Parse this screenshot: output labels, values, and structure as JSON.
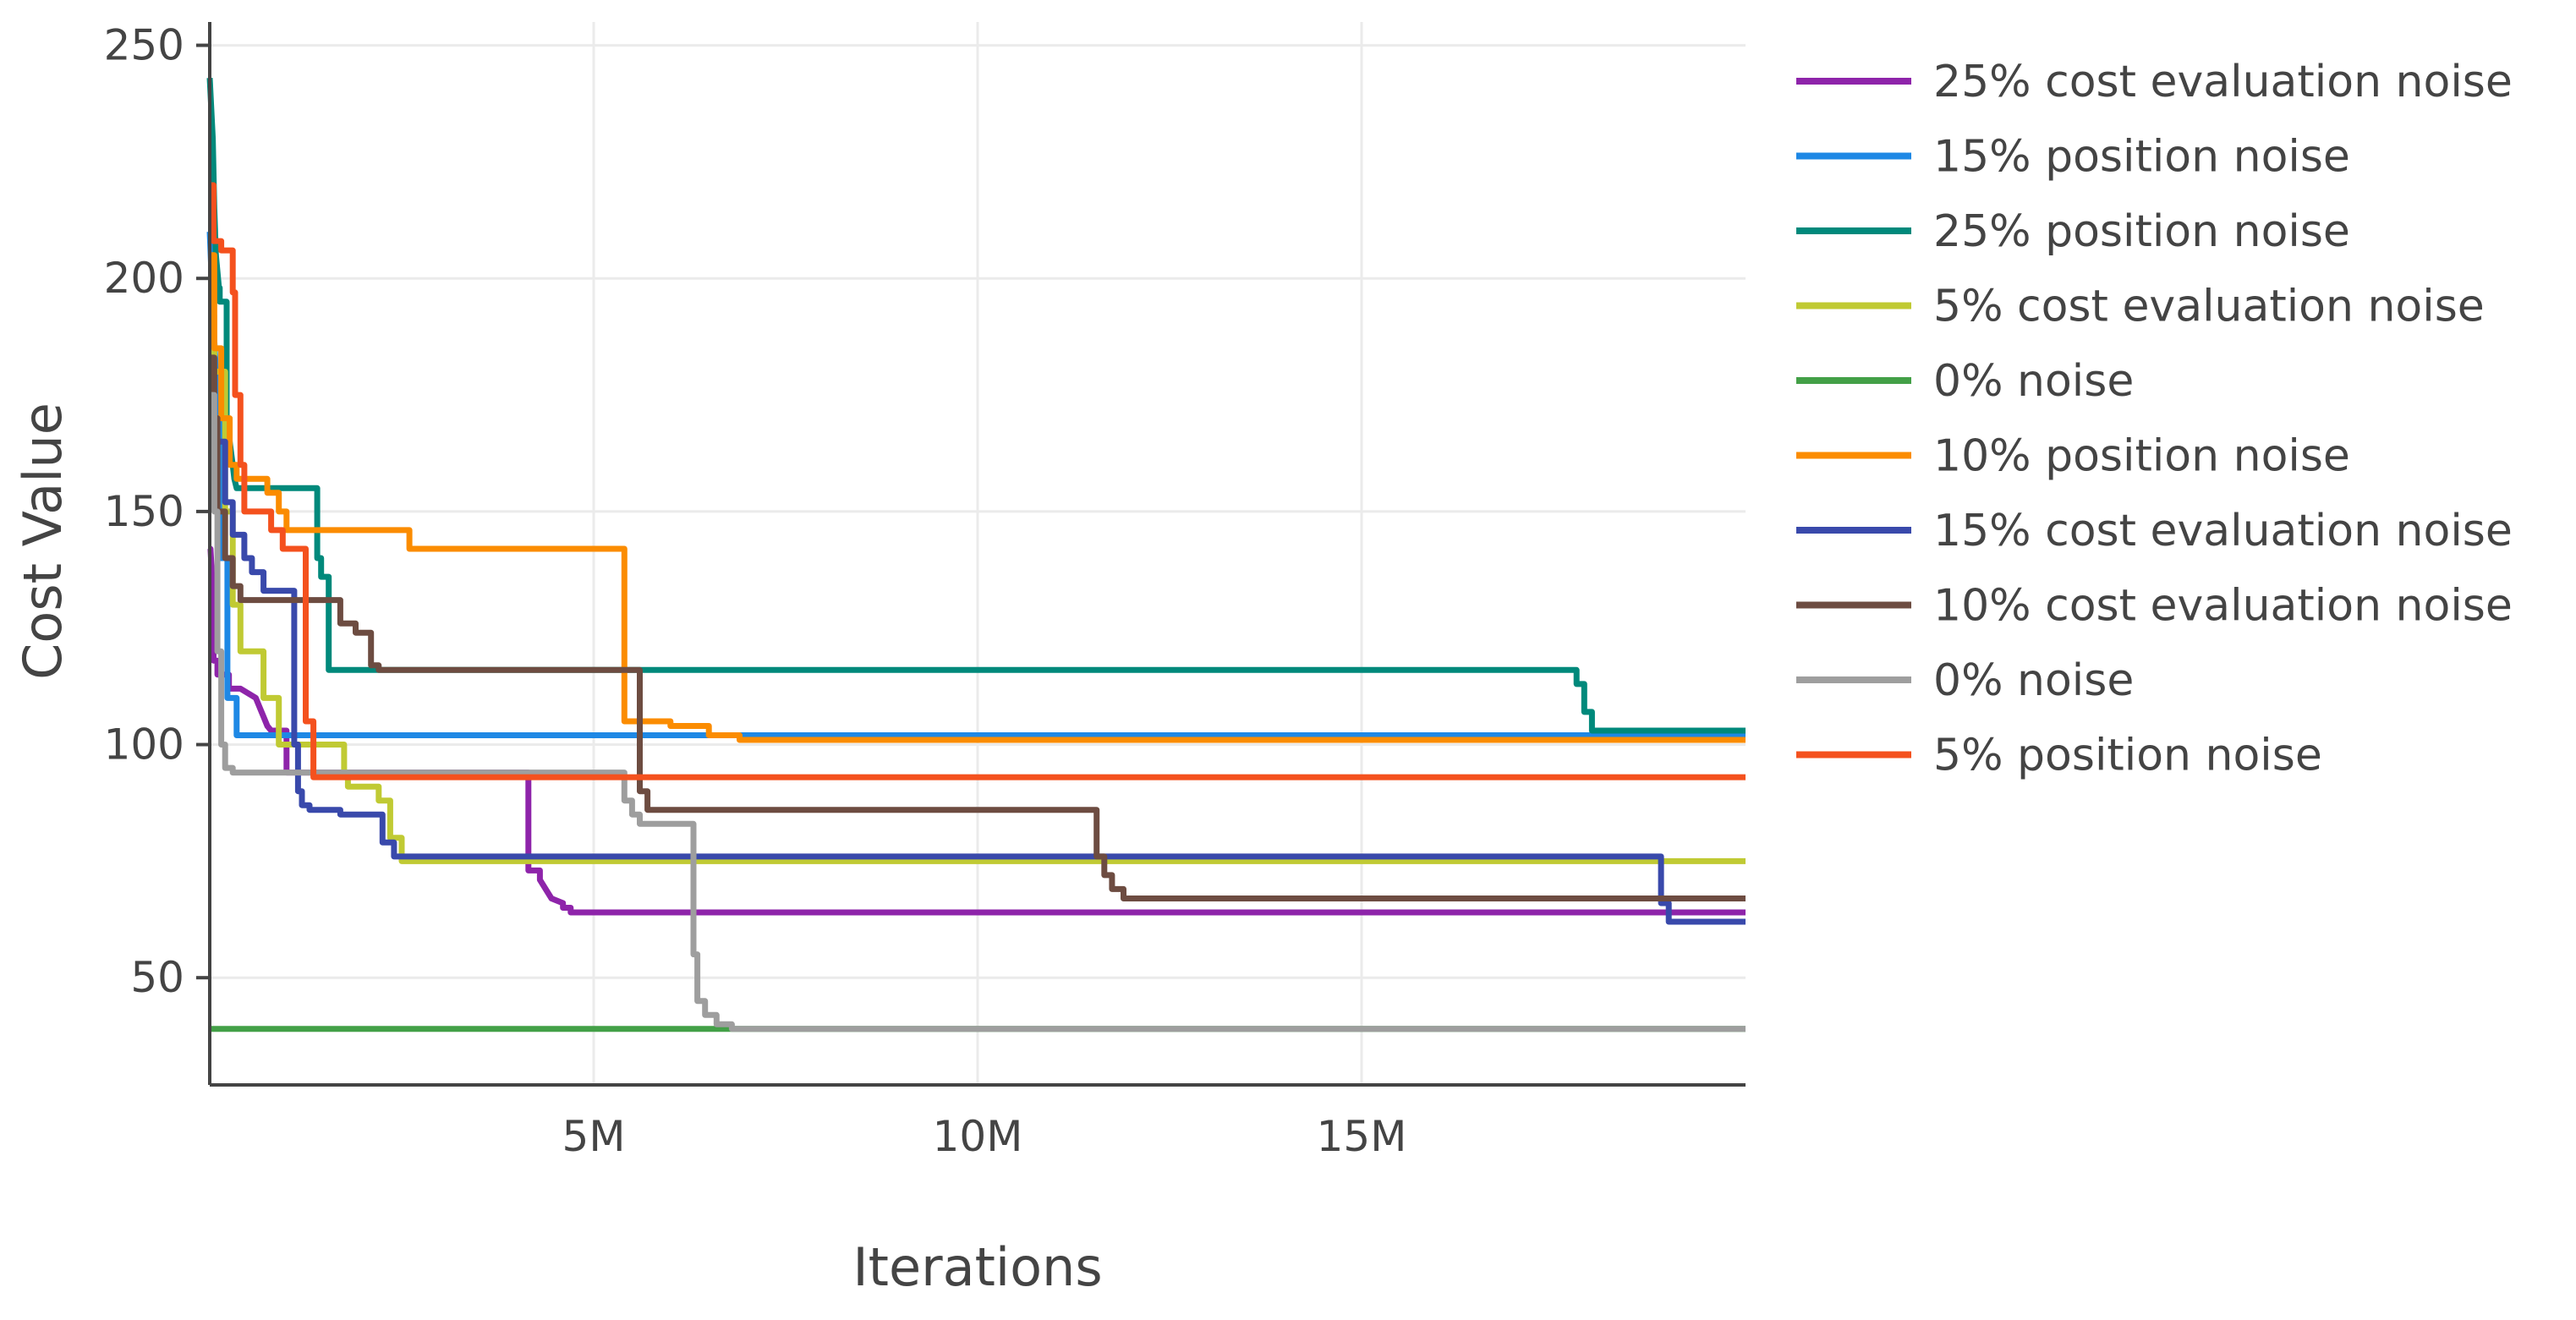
{
  "chart_data": {
    "type": "line",
    "title": "",
    "xlabel": "Iterations",
    "ylabel": "Cost Value",
    "xlim": [
      0,
      20000000
    ],
    "ylim": [
      27,
      255
    ],
    "x_ticks": [
      5000000,
      10000000,
      15000000
    ],
    "x_tick_labels": [
      "5M",
      "10M",
      "15M"
    ],
    "y_ticks": [
      50,
      100,
      150,
      200,
      250
    ],
    "y_tick_labels": [
      "50",
      "100",
      "150",
      "200",
      "250"
    ],
    "grid": true,
    "legend_position": "right",
    "series": [
      {
        "name": "0% noise",
        "color": "#43a047",
        "x": [
          0,
          20000000
        ],
        "y": [
          39,
          39
        ]
      },
      {
        "name": "25% cost evaluation noise",
        "color": "#8e24aa",
        "x": [
          0,
          10000,
          50000,
          50000,
          100000,
          100000,
          250000,
          250000,
          400000,
          600000,
          650000,
          700000,
          750000,
          800000,
          1000000,
          1000000,
          4150000,
          4150000,
          4300000,
          4300000,
          4450000,
          4600000,
          4600000,
          4700000,
          4700000,
          20000000
        ],
        "y": [
          142,
          142,
          130,
          118,
          118,
          115,
          115,
          112,
          112,
          110,
          108,
          106,
          104,
          103,
          103,
          94,
          94,
          73,
          73,
          71,
          67,
          66,
          65,
          65,
          64,
          64
        ]
      },
      {
        "name": "15% position noise",
        "color": "#1e88e5",
        "x": [
          0,
          50000,
          80000,
          80000,
          140000,
          140000,
          230000,
          230000,
          350000,
          350000,
          20000000
        ],
        "y": [
          210,
          190,
          180,
          170,
          170,
          140,
          140,
          110,
          110,
          102,
          102
        ]
      },
      {
        "name": "25% position noise",
        "color": "#00897b",
        "x": [
          0,
          40000,
          60000,
          80000,
          120000,
          130000,
          130000,
          220000,
          220000,
          300000,
          320000,
          350000,
          450000,
          1400000,
          1400000,
          1450000,
          1450000,
          1550000,
          1550000,
          17800000,
          17800000,
          17900000,
          17900000,
          18000000,
          18000000,
          20000000
        ],
        "y": [
          243,
          230,
          215,
          205,
          198,
          198,
          195,
          195,
          170,
          160,
          157,
          155,
          155,
          155,
          140,
          140,
          136,
          136,
          116,
          116,
          113,
          113,
          107,
          107,
          103,
          103
        ]
      },
      {
        "name": "5% cost evaluation noise",
        "color": "#c0ca33",
        "x": [
          0,
          60000,
          60000,
          200000,
          200000,
          300000,
          300000,
          400000,
          400000,
          700000,
          700000,
          900000,
          900000,
          1000000,
          1000000,
          1750000,
          1750000,
          1800000,
          1800000,
          2200000,
          2200000,
          2350000,
          2350000,
          2500000,
          2500000,
          20000000
        ],
        "y": [
          192,
          192,
          180,
          180,
          150,
          150,
          130,
          130,
          120,
          120,
          110,
          110,
          100,
          100,
          100,
          100,
          94,
          94,
          91,
          91,
          88,
          88,
          80,
          80,
          75,
          75
        ]
      },
      {
        "name": "10% position noise",
        "color": "#fb8c00",
        "x": [
          0,
          60000,
          60000,
          150000,
          150000,
          260000,
          260000,
          350000,
          350000,
          750000,
          750000,
          900000,
          900000,
          1000000,
          1000000,
          2600000,
          2600000,
          5400000,
          5400000,
          6000000,
          6000000,
          6500000,
          6500000,
          6900000,
          6900000,
          20000000
        ],
        "y": [
          205,
          205,
          185,
          185,
          170,
          170,
          160,
          160,
          157,
          157,
          154,
          154,
          150,
          150,
          146,
          146,
          142,
          142,
          105,
          105,
          104,
          104,
          102,
          102,
          101,
          101
        ]
      },
      {
        "name": "15% cost evaluation noise",
        "color": "#3949ab",
        "x": [
          0,
          50000,
          50000,
          200000,
          200000,
          300000,
          300000,
          450000,
          450000,
          550000,
          550000,
          700000,
          700000,
          1100000,
          1100000,
          1150000,
          1150000,
          1200000,
          1200000,
          1300000,
          1300000,
          1700000,
          1700000,
          2250000,
          2250000,
          2400000,
          2400000,
          18900000,
          18900000,
          19000000,
          19000000,
          20000000
        ],
        "y": [
          175,
          175,
          165,
          165,
          152,
          152,
          145,
          145,
          140,
          140,
          137,
          137,
          133,
          133,
          100,
          100,
          90,
          90,
          87,
          87,
          86,
          86,
          85,
          85,
          79,
          79,
          76,
          76,
          66,
          66,
          62,
          62
        ]
      },
      {
        "name": "10% cost evaluation noise",
        "color": "#6d4c41",
        "x": [
          0,
          60000,
          60000,
          100000,
          100000,
          200000,
          200000,
          300000,
          300000,
          400000,
          400000,
          1700000,
          1700000,
          1900000,
          1900000,
          2100000,
          2100000,
          2200000,
          2200000,
          5600000,
          5600000,
          5700000,
          5700000,
          11550000,
          11550000,
          11650000,
          11650000,
          11750000,
          11750000,
          11900000,
          11900000,
          20000000
        ],
        "y": [
          183,
          183,
          170,
          170,
          150,
          150,
          140,
          140,
          134,
          134,
          131,
          131,
          126,
          126,
          124,
          124,
          117,
          117,
          116,
          116,
          90,
          90,
          86,
          86,
          76,
          76,
          72,
          72,
          69,
          69,
          67,
          67
        ]
      },
      {
        "name": "0% noise",
        "color": "#9e9e9e",
        "x": [
          0,
          60000,
          60000,
          100000,
          100000,
          150000,
          150000,
          200000,
          200000,
          300000,
          300000,
          5400000,
          5400000,
          5500000,
          5500000,
          5600000,
          5600000,
          6300000,
          6300000,
          6350000,
          6350000,
          6450000,
          6450000,
          6600000,
          6600000,
          6800000,
          6800000,
          20000000
        ],
        "y": [
          175,
          175,
          150,
          150,
          120,
          120,
          100,
          100,
          95,
          95,
          94,
          94,
          88,
          88,
          85,
          85,
          83,
          83,
          55,
          55,
          45,
          45,
          42,
          42,
          40,
          40,
          39,
          39
        ]
      },
      {
        "name": "5% position noise",
        "color": "#f4511e",
        "x": [
          0,
          50000,
          50000,
          150000,
          150000,
          300000,
          300000,
          330000,
          330000,
          400000,
          400000,
          450000,
          450000,
          800000,
          800000,
          950000,
          950000,
          1250000,
          1250000,
          1350000,
          1350000,
          20000000
        ],
        "y": [
          220,
          220,
          208,
          208,
          206,
          206,
          197,
          197,
          175,
          175,
          160,
          160,
          150,
          150,
          146,
          146,
          142,
          142,
          105,
          105,
          93,
          93
        ]
      }
    ],
    "legend_order": [
      1,
      2,
      3,
      4,
      0,
      5,
      6,
      7,
      8,
      9
    ]
  }
}
